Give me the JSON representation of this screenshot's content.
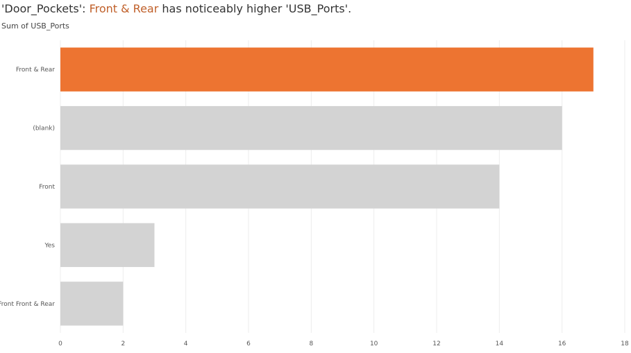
{
  "title": {
    "prefix": "'Door_Pockets': ",
    "highlight": "Front & Rear",
    "suffix": " has noticeably higher 'USB_Ports'."
  },
  "chart_data": {
    "type": "bar",
    "orientation": "horizontal",
    "subtitle": "Sum of USB_Ports",
    "categories": [
      "Front & Rear",
      "(blank)",
      "Front",
      "Yes",
      "Front Front & Rear"
    ],
    "values": [
      17,
      16,
      14,
      3,
      2
    ],
    "xlim": [
      0,
      18
    ],
    "xticks": [
      0,
      2,
      4,
      6,
      8,
      10,
      12,
      14,
      16,
      18
    ],
    "grid": "vertical",
    "highlight_index": 0,
    "colors": {
      "highlight": "#ed7431",
      "default": "#d3d3d3",
      "highlight_text": "#c0602a",
      "grid": "#ececec"
    }
  }
}
